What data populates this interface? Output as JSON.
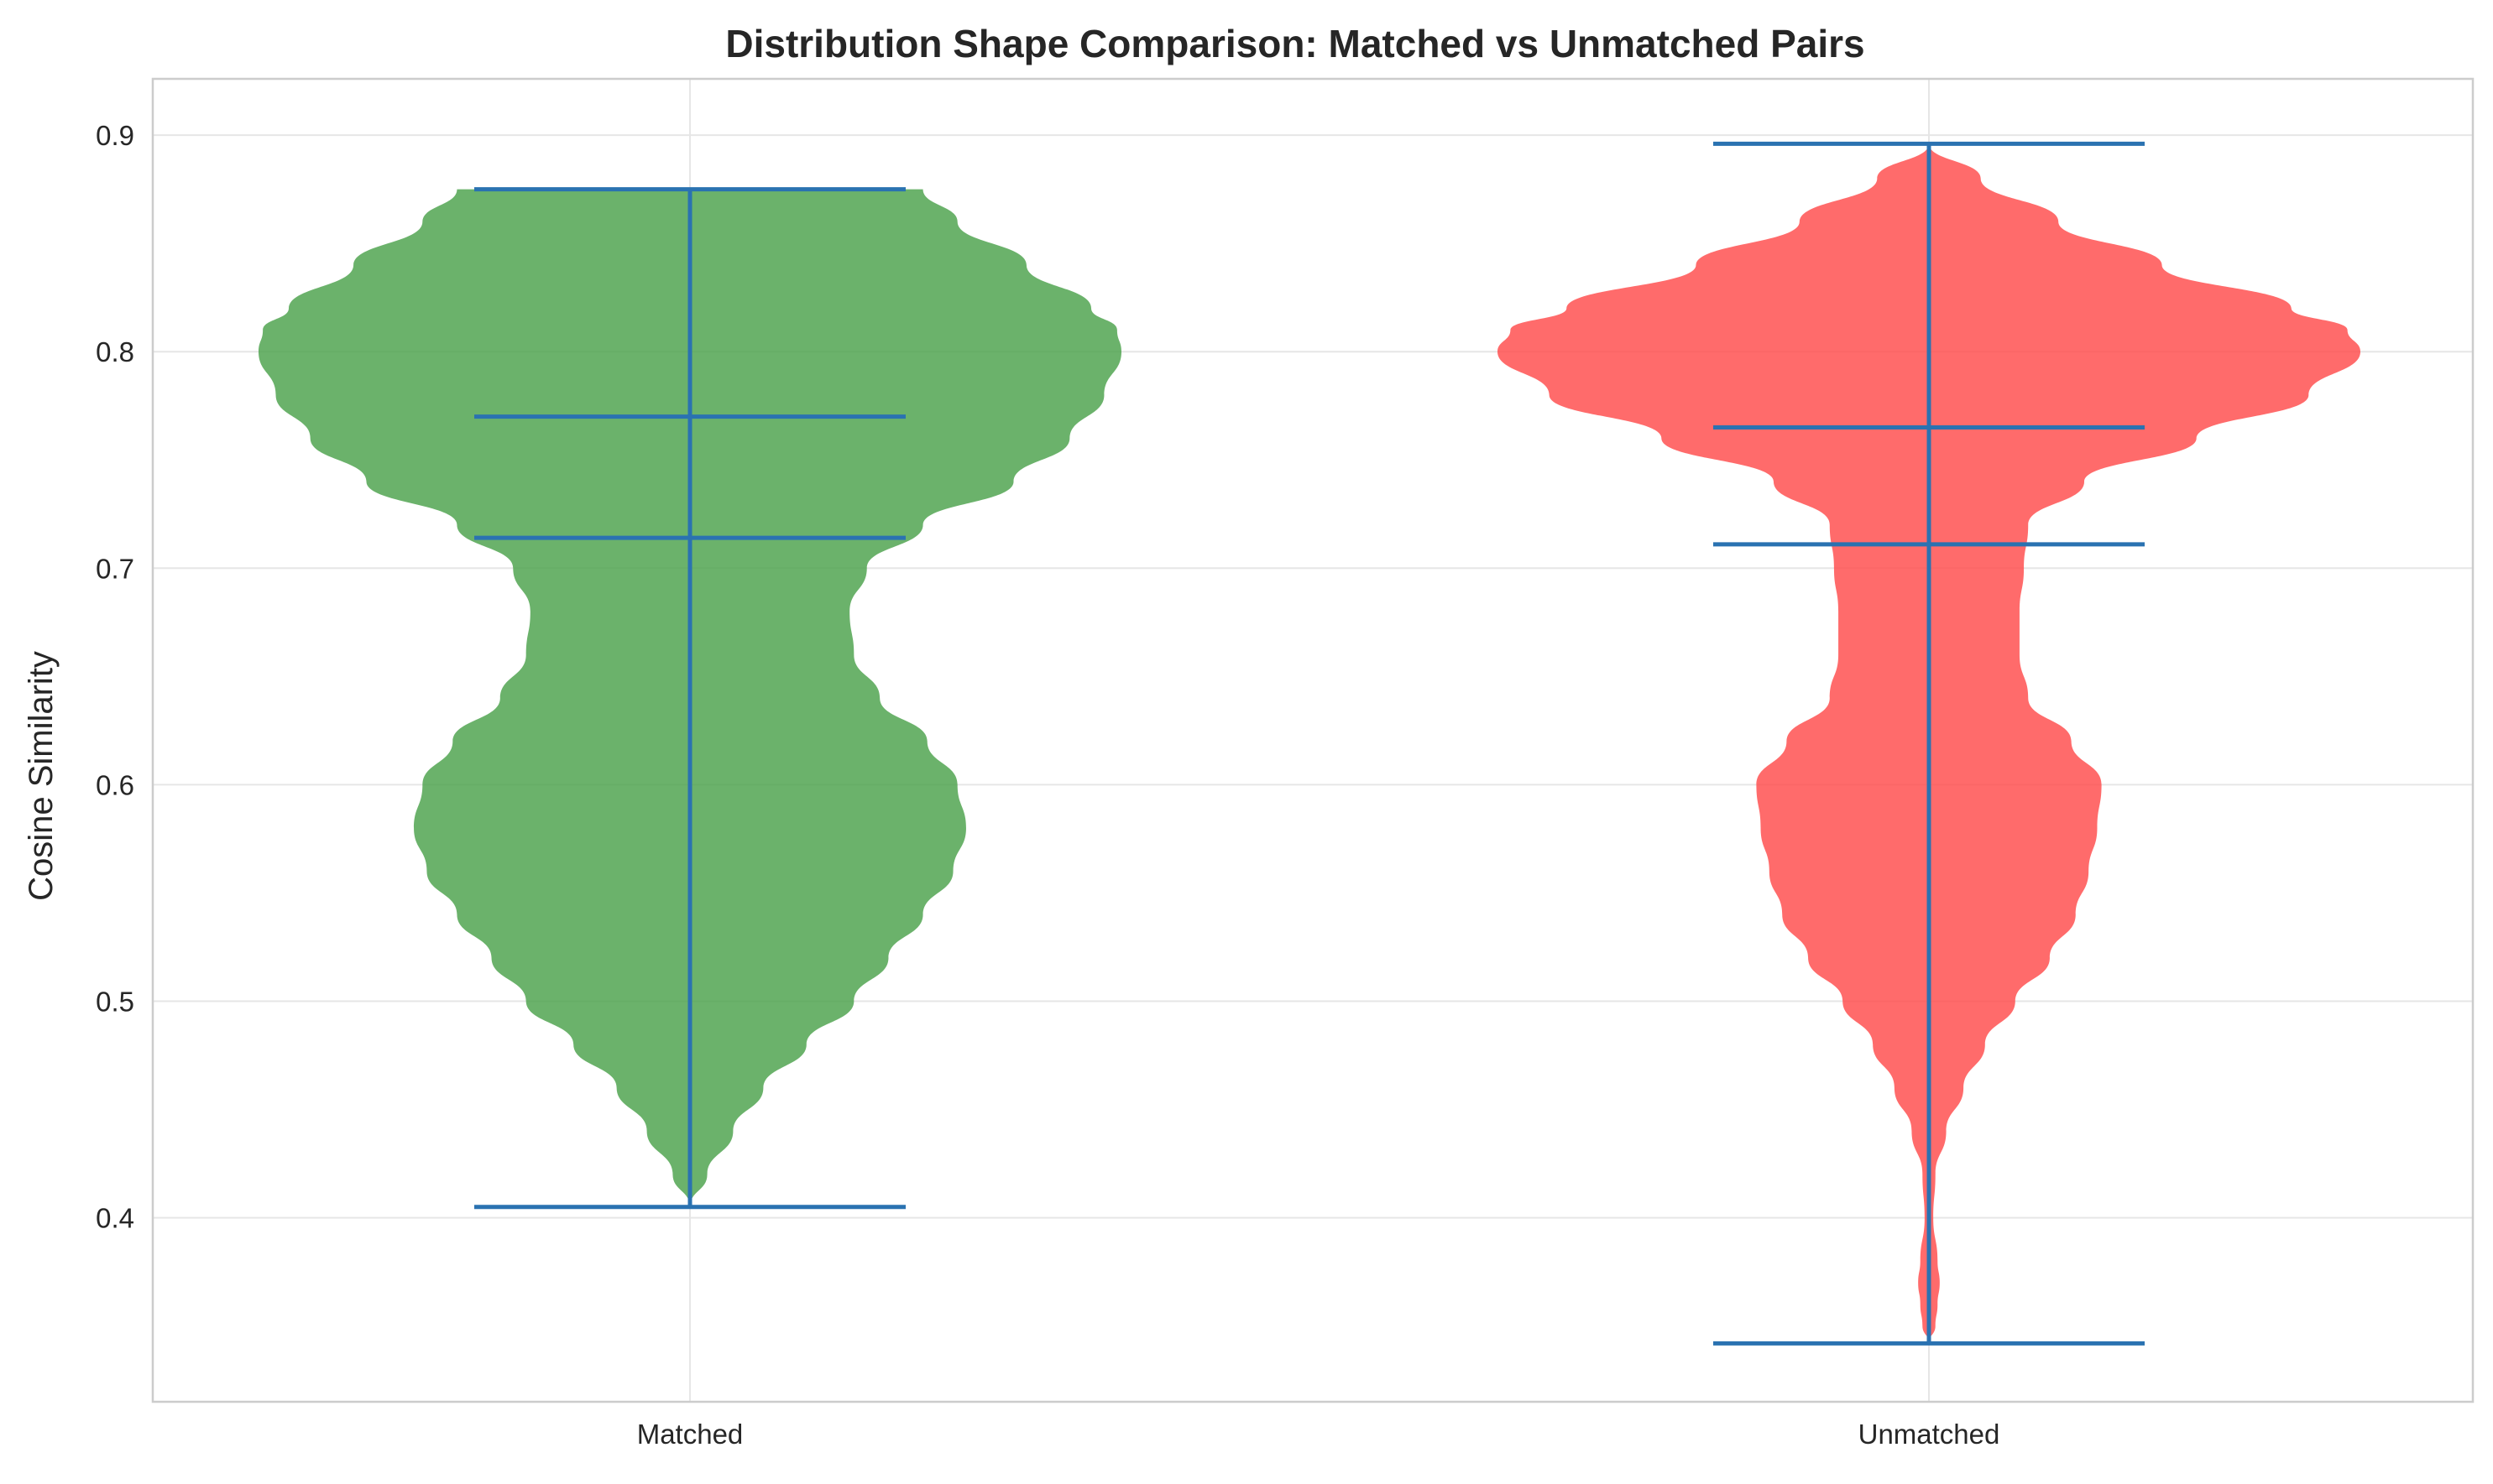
{
  "chart_data": {
    "type": "violin",
    "title": "Distribution Shape Comparison: Matched vs Unmatched Pairs",
    "xlabel": "",
    "ylabel": "Cosine Similarity",
    "ylim": [
      0.315,
      0.926
    ],
    "yticks": [
      0.4,
      0.5,
      0.6,
      0.7,
      0.8,
      0.9
    ],
    "categories": [
      "Matched",
      "Unmatched"
    ],
    "grid": true,
    "series": [
      {
        "name": "Matched",
        "color": "#4aa14a",
        "min": 0.405,
        "max": 0.875,
        "mean": 0.714,
        "median": 0.77,
        "density_profile": [
          [
            0.405,
            0.0
          ],
          [
            0.42,
            0.04
          ],
          [
            0.44,
            0.1
          ],
          [
            0.46,
            0.17
          ],
          [
            0.48,
            0.27
          ],
          [
            0.5,
            0.38
          ],
          [
            0.52,
            0.46
          ],
          [
            0.54,
            0.54
          ],
          [
            0.56,
            0.61
          ],
          [
            0.58,
            0.64
          ],
          [
            0.6,
            0.62
          ],
          [
            0.62,
            0.55
          ],
          [
            0.64,
            0.44
          ],
          [
            0.66,
            0.38
          ],
          [
            0.68,
            0.37
          ],
          [
            0.7,
            0.41
          ],
          [
            0.72,
            0.54
          ],
          [
            0.74,
            0.75
          ],
          [
            0.76,
            0.88
          ],
          [
            0.78,
            0.96
          ],
          [
            0.8,
            1.0
          ],
          [
            0.81,
            0.99
          ],
          [
            0.82,
            0.93
          ],
          [
            0.84,
            0.78
          ],
          [
            0.86,
            0.62
          ],
          [
            0.875,
            0.54
          ]
        ]
      },
      {
        "name": "Unmatched",
        "color": "#ff4a4a",
        "min": 0.342,
        "max": 0.896,
        "mean": 0.711,
        "median": 0.765,
        "density_profile": [
          [
            0.342,
            0.0
          ],
          [
            0.35,
            0.015
          ],
          [
            0.36,
            0.02
          ],
          [
            0.37,
            0.025
          ],
          [
            0.38,
            0.02
          ],
          [
            0.4,
            0.01
          ],
          [
            0.42,
            0.015
          ],
          [
            0.44,
            0.04
          ],
          [
            0.46,
            0.08
          ],
          [
            0.48,
            0.13
          ],
          [
            0.5,
            0.2
          ],
          [
            0.52,
            0.28
          ],
          [
            0.54,
            0.34
          ],
          [
            0.56,
            0.37
          ],
          [
            0.58,
            0.39
          ],
          [
            0.6,
            0.4
          ],
          [
            0.62,
            0.33
          ],
          [
            0.64,
            0.23
          ],
          [
            0.66,
            0.21
          ],
          [
            0.68,
            0.21
          ],
          [
            0.7,
            0.22
          ],
          [
            0.72,
            0.23
          ],
          [
            0.74,
            0.36
          ],
          [
            0.76,
            0.62
          ],
          [
            0.78,
            0.88
          ],
          [
            0.8,
            1.0
          ],
          [
            0.81,
            0.97
          ],
          [
            0.82,
            0.84
          ],
          [
            0.84,
            0.54
          ],
          [
            0.86,
            0.3
          ],
          [
            0.88,
            0.12
          ],
          [
            0.896,
            0.0
          ]
        ]
      }
    ]
  }
}
